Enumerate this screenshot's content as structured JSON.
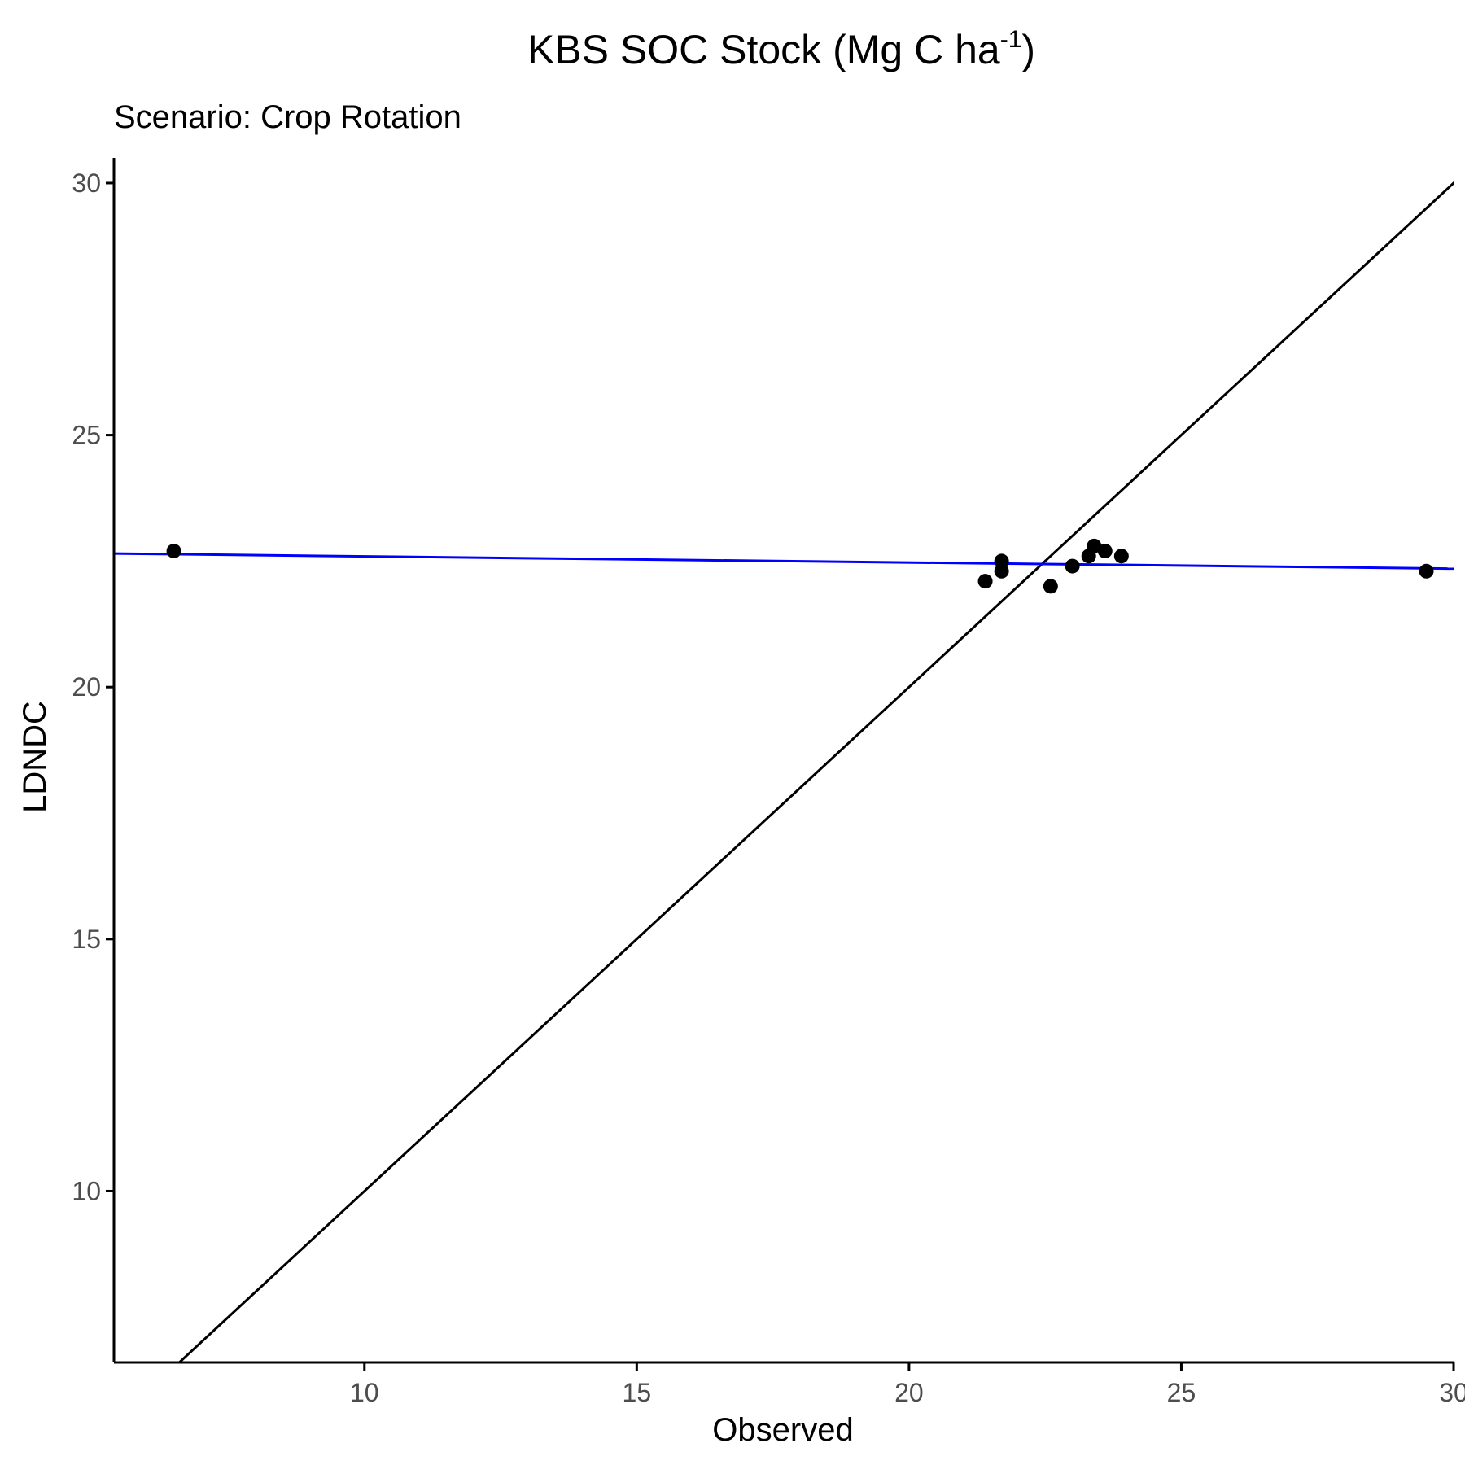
{
  "chart_data": {
    "type": "scatter",
    "title": "KBS SOC Stock (Mg C ha",
    "title_superscript": "-1",
    "title_suffix": ")",
    "subtitle": "Scenario: Crop Rotation",
    "xlabel": "Observed",
    "ylabel": "LDNDC",
    "xlim": [
      5.4,
      30.0
    ],
    "ylim": [
      6.6,
      30.5
    ],
    "xticks": [
      10,
      15,
      20,
      25,
      30
    ],
    "yticks": [
      10,
      15,
      20,
      25,
      30
    ],
    "points": [
      {
        "x": 6.5,
        "y": 22.7
      },
      {
        "x": 21.4,
        "y": 22.1
      },
      {
        "x": 21.7,
        "y": 22.3
      },
      {
        "x": 21.7,
        "y": 22.5
      },
      {
        "x": 22.6,
        "y": 22.0
      },
      {
        "x": 23.0,
        "y": 22.4
      },
      {
        "x": 23.3,
        "y": 22.6
      },
      {
        "x": 23.4,
        "y": 22.8
      },
      {
        "x": 23.6,
        "y": 22.7
      },
      {
        "x": 23.9,
        "y": 22.6
      },
      {
        "x": 29.5,
        "y": 22.3
      }
    ],
    "reference_lines": [
      {
        "kind": "identity",
        "slope": 1,
        "intercept": 0,
        "color": "#000000"
      },
      {
        "kind": "fit",
        "x_start": 5.4,
        "y_start": 22.65,
        "x_end": 30.0,
        "y_end": 22.35,
        "color": "#0000ff"
      }
    ],
    "grid": false,
    "legend": "none"
  }
}
